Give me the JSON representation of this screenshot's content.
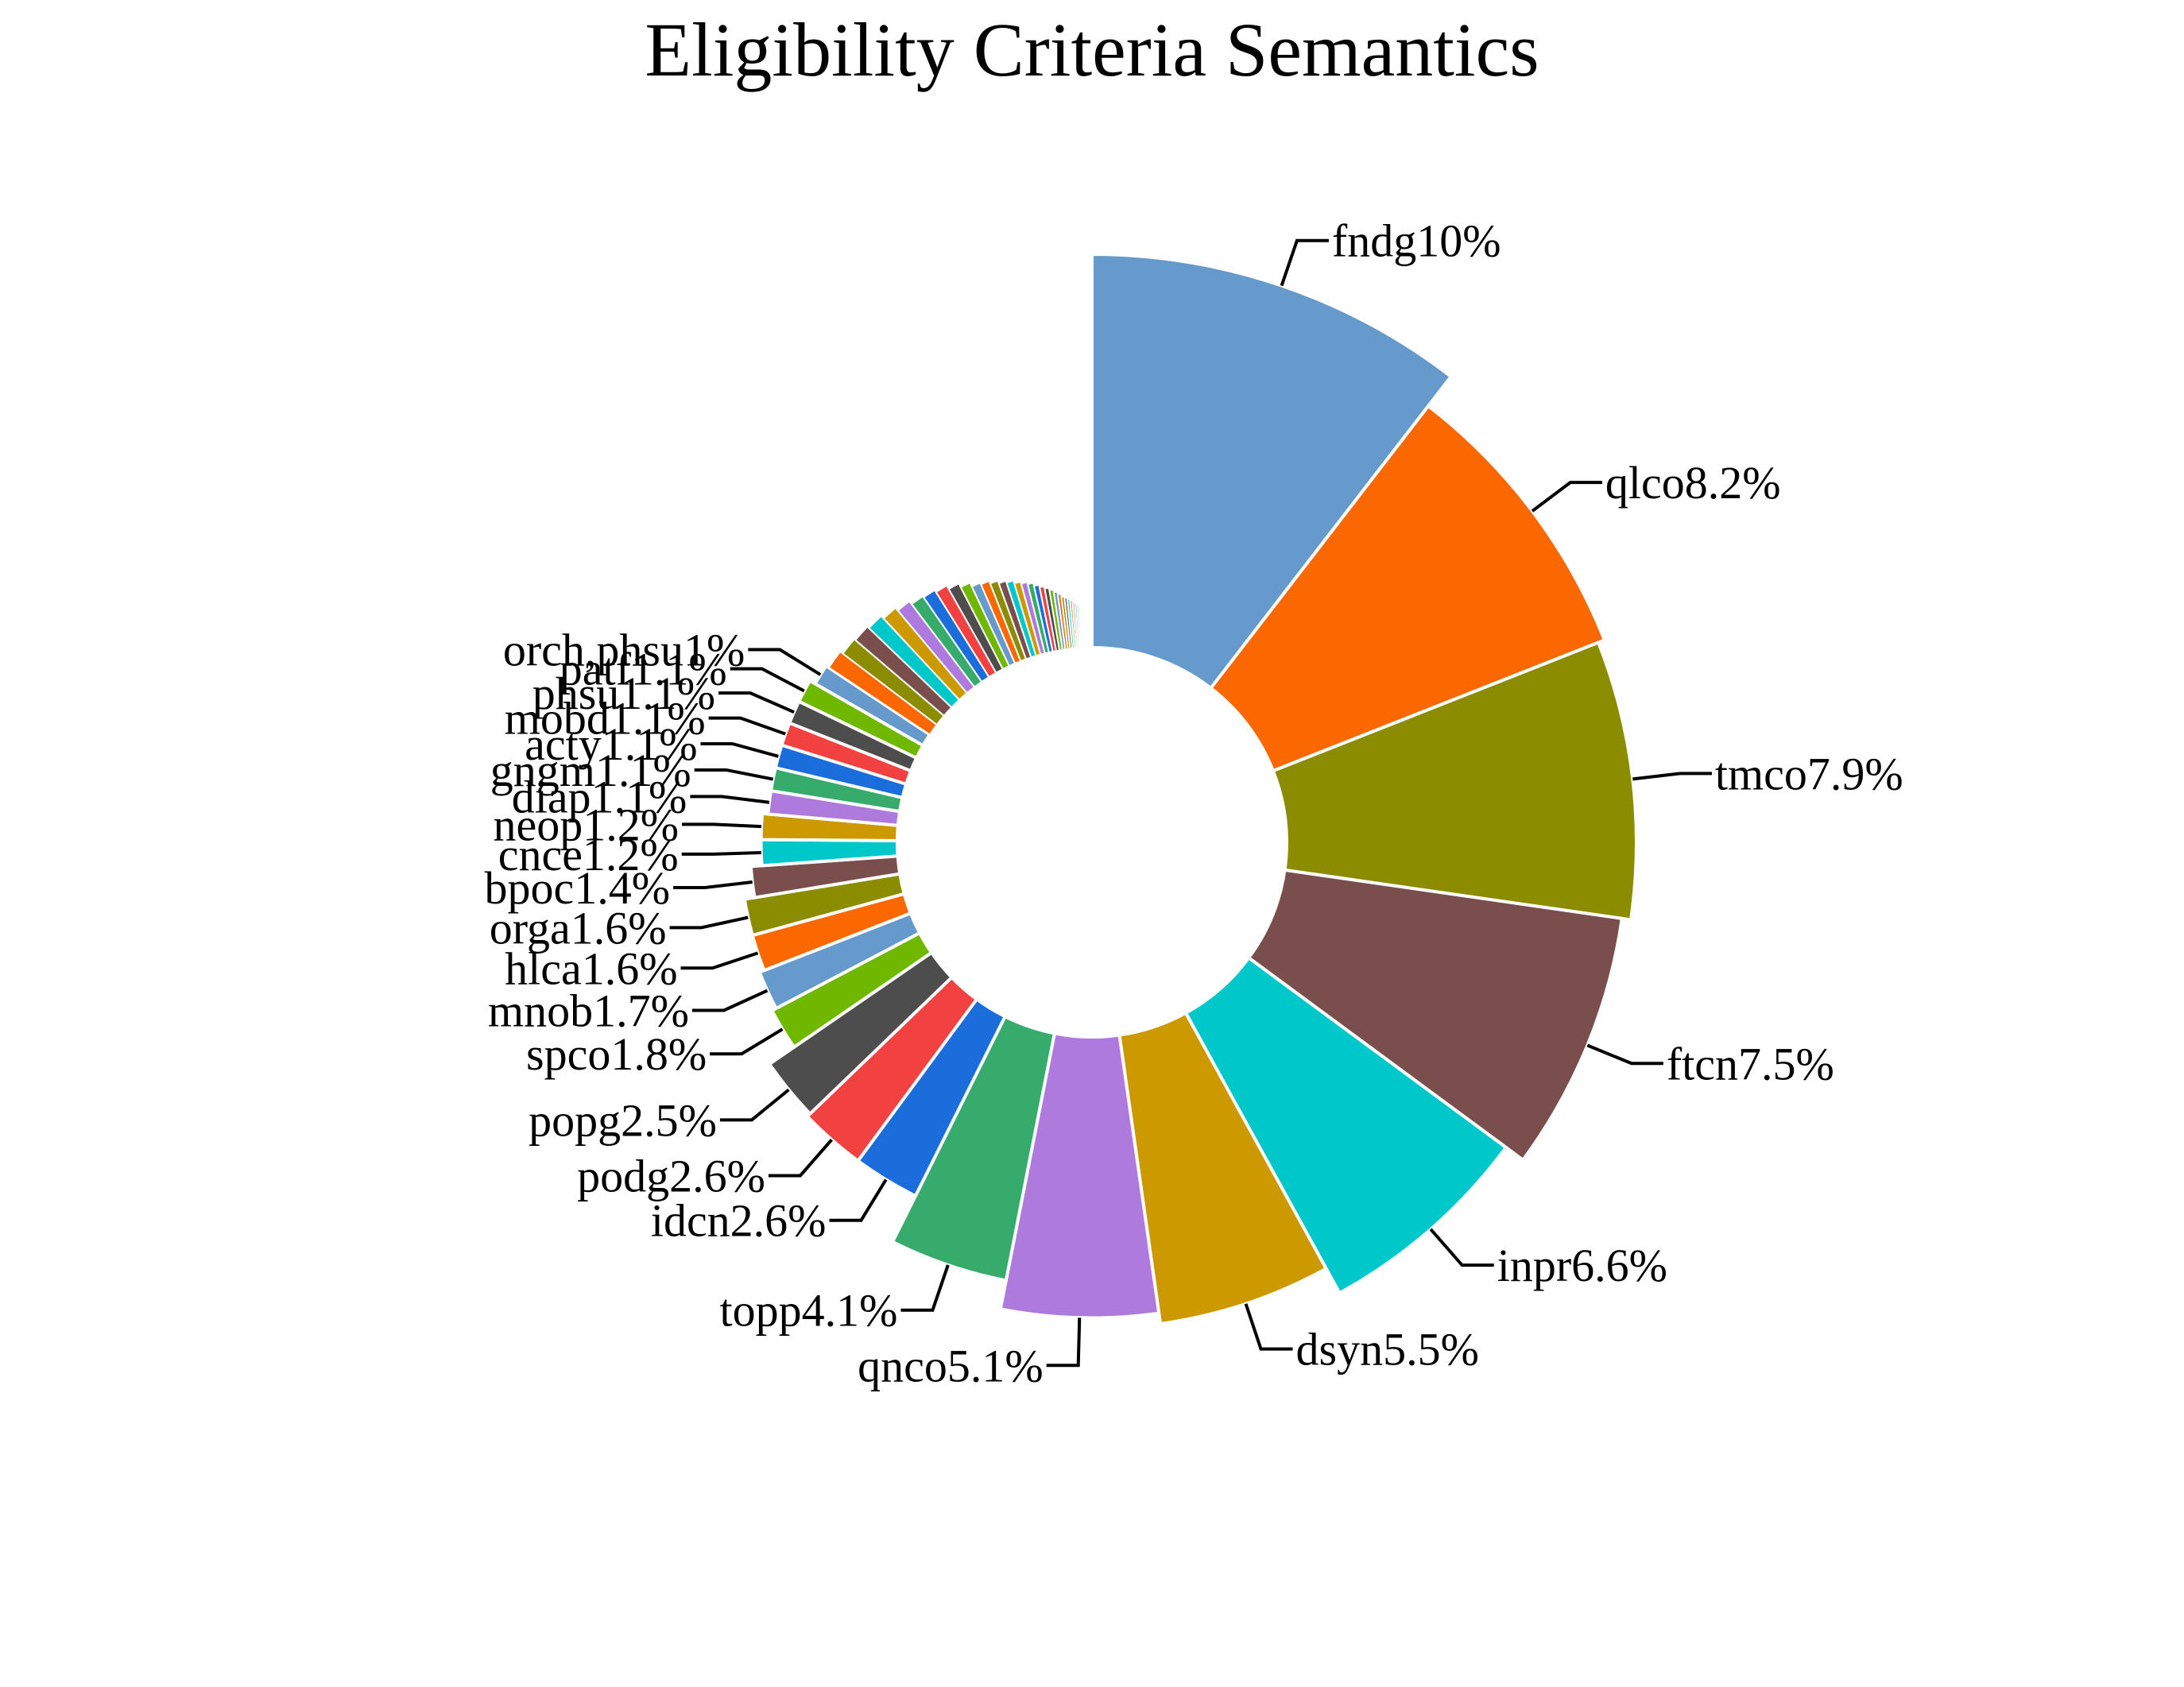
{
  "chart_data": {
    "type": "pie",
    "variant": "nightingale-rose-donut",
    "title": "Eligibility Criteria Semantics",
    "palette": [
      "#6699cc",
      "#fb6701",
      "#8c8c00",
      "#7a4e4d",
      "#00c8ca",
      "#cc9900",
      "#ae7add",
      "#37ab6c",
      "#1a6ddb",
      "#f24141",
      "#4d4d4d",
      "#70b800"
    ],
    "slices": [
      {
        "name": "fndg",
        "value": 10,
        "label": "fndg10%"
      },
      {
        "name": "qlco",
        "value": 8.2,
        "label": "qlco8.2%"
      },
      {
        "name": "tmco",
        "value": 7.9,
        "label": "tmco7.9%"
      },
      {
        "name": "ftcn",
        "value": 7.5,
        "label": "ftcn7.5%"
      },
      {
        "name": "inpr",
        "value": 6.6,
        "label": "inpr6.6%"
      },
      {
        "name": "dsyn",
        "value": 5.5,
        "label": "dsyn5.5%"
      },
      {
        "name": "qnco",
        "value": 5.1,
        "label": "qnco5.1%"
      },
      {
        "name": "topp",
        "value": 4.1,
        "label": "topp4.1%"
      },
      {
        "name": "idcn",
        "value": 2.6,
        "label": "idcn2.6%"
      },
      {
        "name": "podg",
        "value": 2.6,
        "label": "podg2.6%"
      },
      {
        "name": "popg",
        "value": 2.5,
        "label": "popg2.5%"
      },
      {
        "name": "spco",
        "value": 1.8,
        "label": "spco1.8%"
      },
      {
        "name": "mnob",
        "value": 1.7,
        "label": "mnob1.7%"
      },
      {
        "name": "hlca",
        "value": 1.6,
        "label": "hlca1.6%"
      },
      {
        "name": "orga",
        "value": 1.6,
        "label": "orga1.6%"
      },
      {
        "name": "bpoc",
        "value": 1.4,
        "label": "bpoc1.4%"
      },
      {
        "name": "cnce",
        "value": 1.2,
        "label": "cnce1.2%"
      },
      {
        "name": "neop",
        "value": 1.2,
        "label": "neop1.2%"
      },
      {
        "name": "diap",
        "value": 1.1,
        "label": "diap1.1%"
      },
      {
        "name": "gngm",
        "value": 1.1,
        "label": "gngm1.1%"
      },
      {
        "name": "acty",
        "value": 1.1,
        "label": "acty1.1%"
      },
      {
        "name": "mobd",
        "value": 1.1,
        "label": "mobd1.1%"
      },
      {
        "name": "phsu",
        "value": 1.1,
        "label": "phsu1.1%"
      },
      {
        "name": "patf",
        "value": 1.1,
        "label": "patf1.1%"
      },
      {
        "name": "orch,phsu",
        "value": 1,
        "label": "orch,phsu1%"
      }
    ],
    "unlabeled_tail_values": [
      0.95,
      0.9,
      0.88,
      0.85,
      0.8,
      0.75,
      0.7,
      0.68,
      0.65,
      0.6,
      0.55,
      0.5,
      0.48,
      0.45,
      0.42,
      0.4,
      0.37,
      0.35,
      0.33,
      0.3,
      0.28,
      0.26,
      0.24,
      0.22,
      0.2,
      0.18,
      0.17,
      0.16,
      0.15,
      0.14,
      0.13,
      0.12,
      0.11,
      0.1,
      0.09,
      0.08,
      0.07,
      0.06,
      0.05,
      0.05,
      0.04,
      0.04,
      0.03,
      0.03,
      0.02,
      0.02,
      0.02,
      0.01,
      0.01,
      0.01
    ]
  }
}
